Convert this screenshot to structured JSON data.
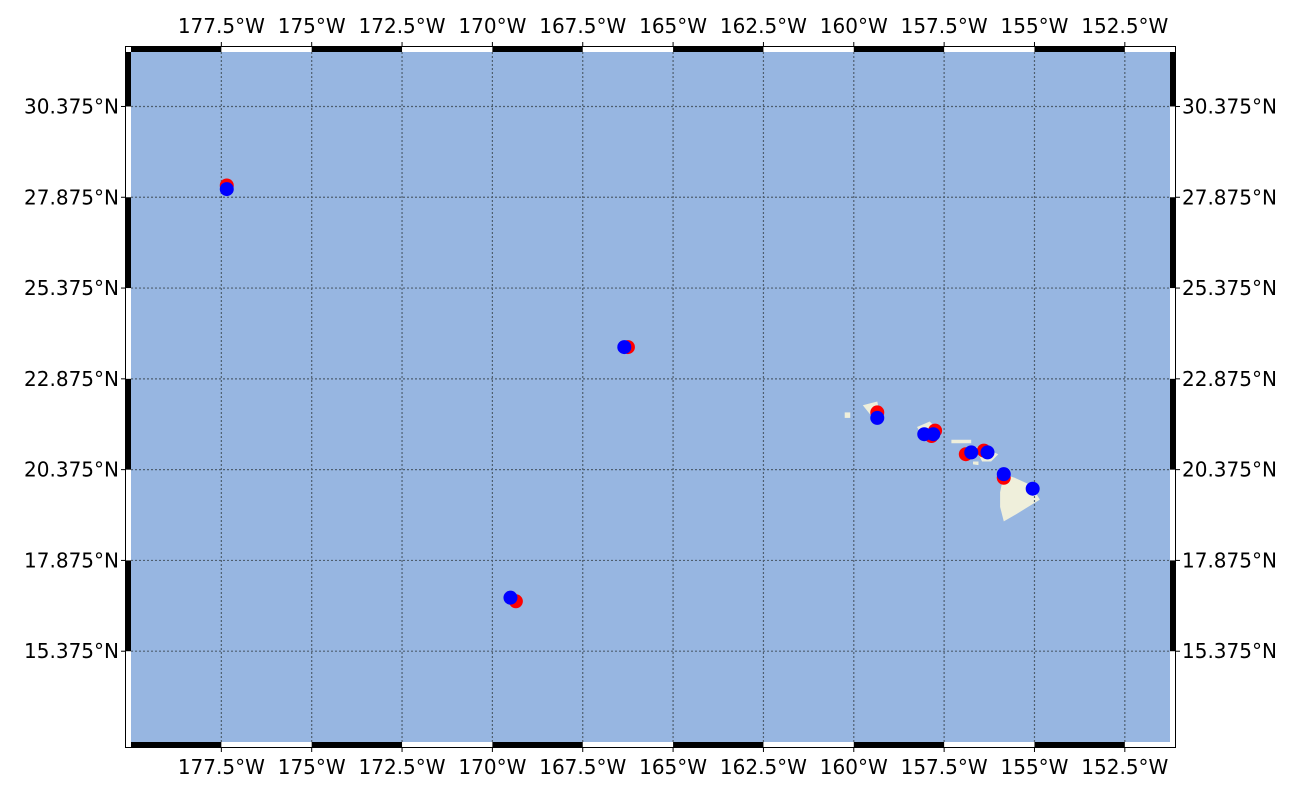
{
  "map": {
    "projection": "plate-carree",
    "extent": {
      "lon": [
        -180,
        -151.25
      ],
      "lat": [
        12.875,
        31.875
      ]
    },
    "colors": {
      "ocean": "#97b6e1",
      "land": "#efefdb",
      "gridline": "#4f5f6f",
      "frame": "#000000",
      "marker_red": "#ff0000",
      "marker_blue": "#0000ff"
    },
    "gridlines": {
      "visible": true,
      "style": "dotted"
    },
    "frame_style": "alternating black-white border"
  },
  "axes": {
    "x_ticks": [
      {
        "lon": -177.5,
        "label": "177.5°W"
      },
      {
        "lon": -175,
        "label": "175°W"
      },
      {
        "lon": -172.5,
        "label": "172.5°W"
      },
      {
        "lon": -170,
        "label": "170°W"
      },
      {
        "lon": -167.5,
        "label": "167.5°W"
      },
      {
        "lon": -165,
        "label": "165°W"
      },
      {
        "lon": -162.5,
        "label": "162.5°W"
      },
      {
        "lon": -160,
        "label": "160°W"
      },
      {
        "lon": -157.5,
        "label": "157.5°W"
      },
      {
        "lon": -155,
        "label": "155°W"
      },
      {
        "lon": -152.5,
        "label": "152.5°W"
      }
    ],
    "y_ticks": [
      {
        "lat": 30.375,
        "label": "30.375°N"
      },
      {
        "lat": 27.875,
        "label": "27.875°N"
      },
      {
        "lat": 25.375,
        "label": "25.375°N"
      },
      {
        "lat": 22.875,
        "label": "22.875°N"
      },
      {
        "lat": 20.375,
        "label": "20.375°N"
      },
      {
        "lat": 17.875,
        "label": "17.875°N"
      },
      {
        "lat": 15.375,
        "label": "15.375°N"
      }
    ]
  },
  "chart_data": {
    "type": "scatter",
    "series": [
      {
        "color": "#ff0000",
        "points": [
          {
            "lon": -177.35,
            "lat": 28.2
          },
          {
            "lon": -166.25,
            "lat": 23.75
          },
          {
            "lon": -159.35,
            "lat": 21.95
          },
          {
            "lon": -157.85,
            "lat": 21.3
          },
          {
            "lon": -157.75,
            "lat": 21.45
          },
          {
            "lon": -156.9,
            "lat": 20.8
          },
          {
            "lon": -156.4,
            "lat": 20.9
          },
          {
            "lon": -155.85,
            "lat": 20.15
          },
          {
            "lon": -169.35,
            "lat": 16.75
          }
        ]
      },
      {
        "color": "#0000ff",
        "points": [
          {
            "lon": -177.35,
            "lat": 28.1
          },
          {
            "lon": -166.35,
            "lat": 23.75
          },
          {
            "lon": -159.35,
            "lat": 21.8
          },
          {
            "lon": -158.05,
            "lat": 21.35
          },
          {
            "lon": -157.8,
            "lat": 21.35
          },
          {
            "lon": -156.75,
            "lat": 20.85
          },
          {
            "lon": -156.3,
            "lat": 20.85
          },
          {
            "lon": -155.85,
            "lat": 20.25
          },
          {
            "lon": -155.05,
            "lat": 19.85
          },
          {
            "lon": -169.5,
            "lat": 16.85
          }
        ]
      }
    ]
  },
  "land": [
    {
      "name": "Hawaii",
      "points": [
        [
          -155.85,
          20.25
        ],
        [
          -155.55,
          20.15
        ],
        [
          -155.1,
          19.95
        ],
        [
          -154.85,
          19.55
        ],
        [
          -155.5,
          19.15
        ],
        [
          -155.85,
          18.95
        ],
        [
          -155.95,
          19.35
        ],
        [
          -155.95,
          19.75
        ],
        [
          -155.85,
          20.25
        ]
      ]
    },
    {
      "name": "Maui",
      "points": [
        [
          -156.65,
          21.0
        ],
        [
          -156.35,
          20.95
        ],
        [
          -156.0,
          20.8
        ],
        [
          -156.2,
          20.6
        ],
        [
          -156.45,
          20.6
        ],
        [
          -156.55,
          20.8
        ],
        [
          -156.65,
          21.0
        ]
      ]
    },
    {
      "name": "Lanai",
      "points": [
        [
          -157.0,
          20.9
        ],
        [
          -156.85,
          20.85
        ],
        [
          -156.9,
          20.75
        ],
        [
          -157.05,
          20.8
        ],
        [
          -157.0,
          20.9
        ]
      ]
    },
    {
      "name": "Kahoolawe",
      "points": [
        [
          -156.7,
          20.6
        ],
        [
          -156.55,
          20.6
        ],
        [
          -156.55,
          20.5
        ],
        [
          -156.7,
          20.52
        ],
        [
          -156.7,
          20.6
        ]
      ]
    },
    {
      "name": "Molokai",
      "points": [
        [
          -157.3,
          21.2
        ],
        [
          -156.75,
          21.2
        ],
        [
          -156.75,
          21.1
        ],
        [
          -157.3,
          21.1
        ],
        [
          -157.3,
          21.2
        ]
      ]
    },
    {
      "name": "Oahu",
      "points": [
        [
          -158.25,
          21.55
        ],
        [
          -157.9,
          21.7
        ],
        [
          -157.65,
          21.45
        ],
        [
          -157.65,
          21.3
        ],
        [
          -158.1,
          21.3
        ],
        [
          -158.25,
          21.55
        ]
      ]
    },
    {
      "name": "Kauai",
      "points": [
        [
          -159.75,
          22.15
        ],
        [
          -159.35,
          22.25
        ],
        [
          -159.3,
          22.0
        ],
        [
          -159.55,
          21.9
        ],
        [
          -159.75,
          22.15
        ]
      ]
    },
    {
      "name": "Niihau",
      "points": [
        [
          -160.25,
          21.95
        ],
        [
          -160.1,
          21.95
        ],
        [
          -160.1,
          21.8
        ],
        [
          -160.25,
          21.8
        ],
        [
          -160.25,
          21.95
        ]
      ]
    }
  ]
}
